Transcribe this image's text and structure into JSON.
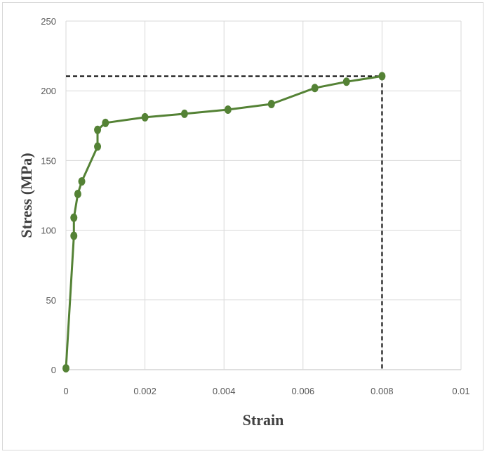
{
  "chart_data": {
    "type": "line",
    "title": "",
    "xlabel": "Strain",
    "ylabel": "Stress (MPa)",
    "xlim": [
      0,
      0.01
    ],
    "ylim": [
      0,
      250
    ],
    "x_ticks": [
      "0",
      "0.002",
      "0.004",
      "0.006",
      "0.008",
      "0.01"
    ],
    "y_ticks": [
      "0",
      "50",
      "100",
      "150",
      "200",
      "250"
    ],
    "grid": true,
    "legend": "none",
    "series": [
      {
        "color": "#548235",
        "x": [
          0,
          0.0002,
          0.0002,
          0.0003,
          0.0004,
          0.0008,
          0.0008,
          0.001,
          0.002,
          0.003,
          0.0041,
          0.0052,
          0.0063,
          0.0071,
          0.008
        ],
        "y": [
          1,
          96,
          109,
          126,
          135,
          160,
          172,
          177,
          181,
          183.5,
          186.5,
          190.5,
          202,
          206.5,
          210.5
        ]
      }
    ],
    "reference_lines": {
      "color": "#000000",
      "style": "dashed",
      "x": 0.008,
      "y": 210.5
    }
  }
}
